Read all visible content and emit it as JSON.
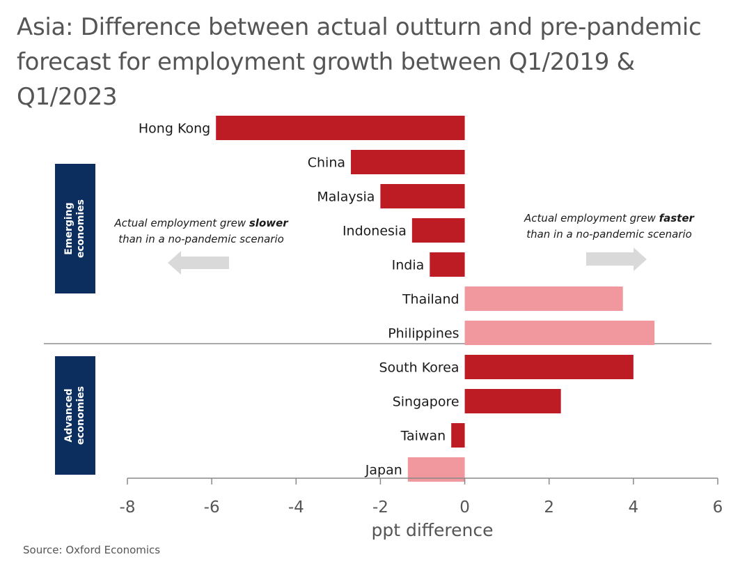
{
  "title": "Asia: Difference between actual outturn and pre-pandemic forecast for employment growth between Q1/2019 & Q1/2023",
  "source": "Source: Oxford Economics",
  "groups": {
    "emerging": [
      "Emerging",
      "economies"
    ],
    "advanced": [
      "Advanced",
      "economies"
    ]
  },
  "annotations": {
    "slower": {
      "before": "Actual employment grew ",
      "bold": "slower",
      "line2": "than in a no-pandemic scenario"
    },
    "faster": {
      "before": "Actual employment grew ",
      "bold": "faster",
      "line2": "than in a no-pandemic scenario"
    }
  },
  "colors": {
    "dark_bar": "#be1c25",
    "light_bar": "#f0989d",
    "group_box": "#0b2e5e",
    "arrow": "#d9d9d9",
    "axis": "#888888"
  },
  "chart_data": {
    "type": "bar",
    "orientation": "horizontal",
    "xlabel": "ppt difference",
    "ylabel": "",
    "xlim": [
      -8,
      6
    ],
    "xticks": [
      -8,
      -6,
      -4,
      -2,
      0,
      2,
      4,
      6
    ],
    "grid": false,
    "categories": [
      "Hong Kong",
      "China",
      "Malaysia",
      "Indonesia",
      "India",
      "Thailand",
      "Philippines",
      "South Korea",
      "Singapore",
      "Taiwan",
      "Japan"
    ],
    "values": [
      -5.9,
      -2.7,
      -2.0,
      -1.25,
      -0.83,
      3.75,
      4.5,
      4.0,
      2.28,
      -0.32,
      -1.35
    ],
    "shade": [
      "dark",
      "dark",
      "dark",
      "dark",
      "dark",
      "light",
      "light",
      "dark",
      "dark",
      "dark",
      "light"
    ],
    "group": [
      "Emerging economies",
      "Emerging economies",
      "Emerging economies",
      "Emerging economies",
      "Emerging economies",
      "Emerging economies",
      "Emerging economies",
      "Advanced economies",
      "Advanced economies",
      "Advanced economies",
      "Advanced economies"
    ]
  }
}
